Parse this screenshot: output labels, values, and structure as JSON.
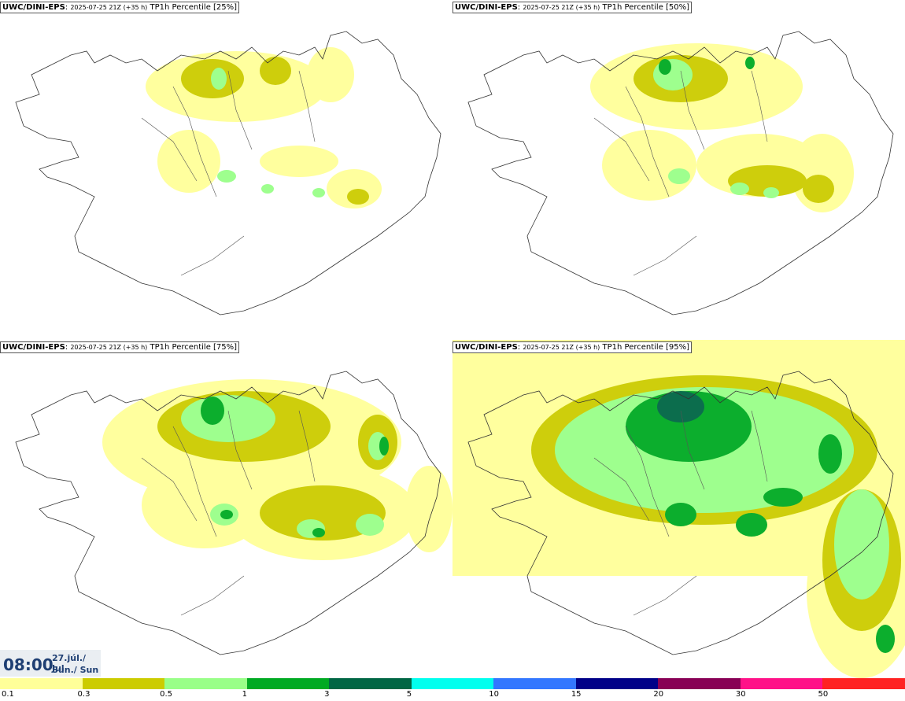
{
  "panels": [
    {
      "model": "UWC/DINI-EPS",
      "run": "2025-07-25 21Z (+35 h)",
      "product": "TP1h Percentile [25%]"
    },
    {
      "model": "UWC/DINI-EPS",
      "run": "2025-07-25 21Z (+35 h)",
      "product": "TP1h Percentile [50%]"
    },
    {
      "model": "UWC/DINI-EPS",
      "run": "2025-07-25 21Z (+35 h)",
      "product": "TP1h Percentile [75%]"
    },
    {
      "model": "UWC/DINI-EPS",
      "run": "2025-07-25 21Z (+35 h)",
      "product": "TP1h Percentile [95%]"
    }
  ],
  "valid_time": {
    "time": "08:00",
    "date_line1": "27.júl./ Jul",
    "date_line2": "Sun./ Sun"
  },
  "legend": {
    "colors": [
      "#ffff99",
      "#cccc00",
      "#99ff88",
      "#00aa22",
      "#006644",
      "#00ffee",
      "#3377ff",
      "#000088",
      "#880055",
      "#ff1188",
      "#ff2222"
    ],
    "labels": [
      "0.1",
      "0.3",
      "0.5",
      "1",
      "3",
      "5",
      "10",
      "15",
      "20",
      "30",
      "50"
    ]
  }
}
